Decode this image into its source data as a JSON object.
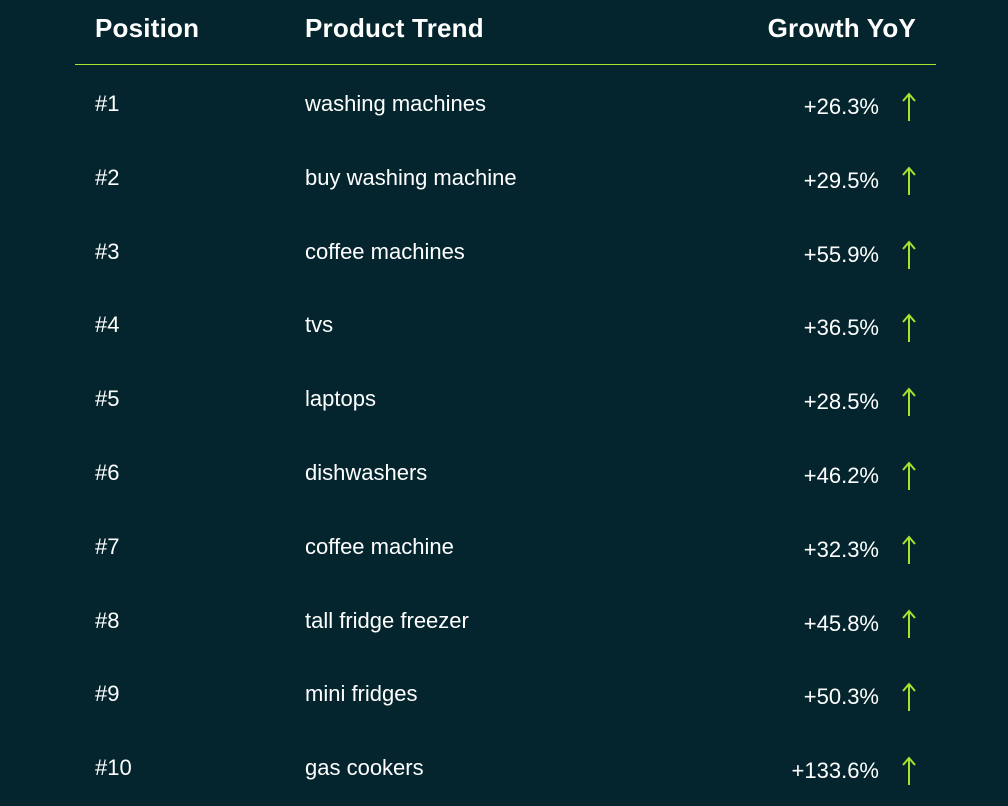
{
  "colors": {
    "background": "#04252e",
    "text": "#ffffff",
    "accent": "#a6e22e"
  },
  "header": {
    "position": "Position",
    "trend": "Product Trend",
    "growth": "Growth YoY"
  },
  "rows": [
    {
      "position": "#1",
      "trend": "washing machines",
      "growth": "+26.3%",
      "icon": "arrow-up-icon"
    },
    {
      "position": "#2",
      "trend": "buy washing machine",
      "growth": "+29.5%",
      "icon": "arrow-up-icon"
    },
    {
      "position": "#3",
      "trend": "coffee machines",
      "growth": "+55.9%",
      "icon": "arrow-up-icon"
    },
    {
      "position": "#4",
      "trend": "tvs",
      "growth": "+36.5%",
      "icon": "arrow-up-icon"
    },
    {
      "position": "#5",
      "trend": "laptops",
      "growth": "+28.5%",
      "icon": "arrow-up-icon"
    },
    {
      "position": "#6",
      "trend": "dishwashers",
      "growth": "+46.2%",
      "icon": "arrow-up-icon"
    },
    {
      "position": "#7",
      "trend": "coffee machine",
      "growth": "+32.3%",
      "icon": "arrow-up-icon"
    },
    {
      "position": "#8",
      "trend": "tall fridge freezer",
      "growth": "+45.8%",
      "icon": "arrow-up-icon"
    },
    {
      "position": "#9",
      "trend": "mini fridges",
      "growth": "+50.3%",
      "icon": "arrow-up-icon"
    },
    {
      "position": "#10",
      "trend": "gas cookers",
      "growth": "+133.6%",
      "icon": "arrow-up-icon"
    }
  ]
}
